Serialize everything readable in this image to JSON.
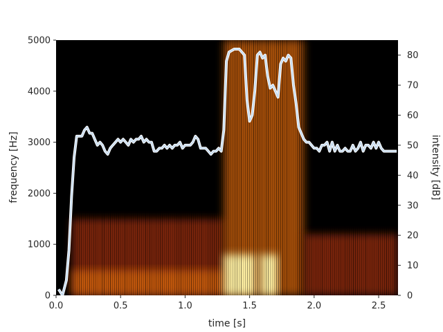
{
  "chart_data": {
    "type": "heatmap",
    "title": "",
    "xlabel": "time [s]",
    "ylabel": "frequency [Hz]",
    "y2label": "intensity [dB]",
    "xlim": [
      0.0,
      2.65
    ],
    "ylim": [
      0,
      5000
    ],
    "y2lim": [
      0,
      85
    ],
    "xticks": [
      "0.0",
      "0.5",
      "1.0",
      "1.5",
      "2.0",
      "2.5"
    ],
    "yticks": [
      "0",
      "1000",
      "2000",
      "3000",
      "4000",
      "5000"
    ],
    "y2ticks": [
      "0",
      "10",
      "20",
      "30",
      "40",
      "50",
      "60",
      "70",
      "80"
    ],
    "grid": false,
    "colors": {
      "background": "#000000",
      "intensity_line": "#c6dbef",
      "intensity_outline": "#ffffff"
    },
    "spectrogram_regions": [
      {
        "t_start": 0.12,
        "t_end": 1.3,
        "f_max": 1500,
        "level": "medium"
      },
      {
        "t_start": 0.12,
        "t_end": 1.3,
        "f_max": 500,
        "level": "high"
      },
      {
        "t_start": 1.3,
        "t_end": 1.92,
        "f_max": 5000,
        "level": "high"
      },
      {
        "t_start": 1.3,
        "t_end": 1.55,
        "f_max": 800,
        "level": "peak"
      },
      {
        "t_start": 1.58,
        "t_end": 1.72,
        "f_max": 800,
        "level": "peak"
      },
      {
        "t_start": 1.92,
        "t_end": 2.65,
        "f_max": 1200,
        "level": "medium"
      }
    ],
    "series": [
      {
        "type": "line",
        "axis": "y2",
        "x": [
          0.02,
          0.05,
          0.08,
          0.1,
          0.12,
          0.14,
          0.16,
          0.18,
          0.2,
          0.22,
          0.24,
          0.26,
          0.28,
          0.3,
          0.32,
          0.34,
          0.36,
          0.38,
          0.4,
          0.42,
          0.44,
          0.46,
          0.48,
          0.5,
          0.52,
          0.54,
          0.56,
          0.58,
          0.6,
          0.62,
          0.64,
          0.66,
          0.68,
          0.7,
          0.72,
          0.74,
          0.76,
          0.78,
          0.8,
          0.82,
          0.84,
          0.86,
          0.88,
          0.9,
          0.92,
          0.94,
          0.96,
          0.98,
          1.0,
          1.02,
          1.04,
          1.06,
          1.08,
          1.1,
          1.12,
          1.14,
          1.16,
          1.18,
          1.2,
          1.22,
          1.24,
          1.26,
          1.28,
          1.3,
          1.32,
          1.34,
          1.38,
          1.42,
          1.46,
          1.48,
          1.5,
          1.52,
          1.54,
          1.56,
          1.58,
          1.6,
          1.62,
          1.64,
          1.66,
          1.68,
          1.7,
          1.72,
          1.74,
          1.76,
          1.78,
          1.8,
          1.82,
          1.84,
          1.86,
          1.88,
          1.9,
          1.92,
          1.94,
          1.96,
          1.98,
          2.0,
          2.02,
          2.04,
          2.06,
          2.08,
          2.1,
          2.12,
          2.14,
          2.16,
          2.18,
          2.2,
          2.22,
          2.24,
          2.26,
          2.28,
          2.3,
          2.32,
          2.34,
          2.36,
          2.38,
          2.4,
          2.42,
          2.44,
          2.46,
          2.48,
          2.5,
          2.52,
          2.54,
          2.56,
          2.58,
          2.6,
          2.62,
          2.64
        ],
        "y": [
          2,
          0,
          5,
          15,
          33,
          46,
          53,
          53,
          53,
          55,
          56,
          54,
          54,
          52,
          50,
          51,
          50,
          48,
          47,
          49,
          50,
          51,
          52,
          51,
          52,
          51,
          50,
          52,
          51,
          52,
          52,
          53,
          51,
          52,
          51,
          51,
          48,
          48,
          49,
          49,
          50,
          49,
          50,
          49,
          50,
          50,
          51,
          49,
          50,
          50,
          50,
          51,
          53,
          52,
          49,
          49,
          49,
          48,
          47,
          48,
          48,
          49,
          48,
          55,
          78,
          81,
          82,
          82,
          80,
          65,
          58,
          60,
          68,
          80,
          81,
          79,
          80,
          73,
          69,
          70,
          68,
          66,
          77,
          79,
          78,
          80,
          79,
          70,
          64,
          56,
          54,
          52,
          51,
          51,
          50,
          49,
          49,
          48,
          50,
          50,
          51,
          48,
          51,
          48,
          50,
          48,
          48,
          49,
          48,
          48,
          50,
          48,
          49,
          51,
          48,
          50,
          50,
          49,
          51,
          49,
          51,
          49,
          48,
          48,
          48,
          48,
          48,
          48
        ]
      }
    ]
  }
}
